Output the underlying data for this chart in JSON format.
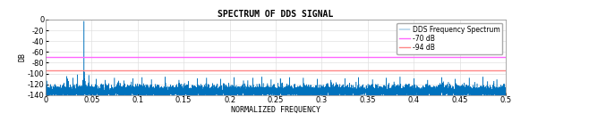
{
  "title": "SPECTRUM OF DDS SIGNAL",
  "xlabel": "NORMALIZED FREQUENCY",
  "ylabel": "DB",
  "xlim": [
    0,
    0.5
  ],
  "ylim": [
    -140,
    0
  ],
  "yticks": [
    0,
    -20,
    -40,
    -60,
    -80,
    -100,
    -120,
    -140
  ],
  "xticks": [
    0,
    0.05,
    0.1,
    0.15,
    0.2,
    0.25,
    0.3,
    0.35,
    0.4,
    0.45,
    0.5
  ],
  "hline_70_val": -70,
  "hline_70_color": "#ff66ff",
  "hline_94_val": -94,
  "hline_94_color": "#ff8888",
  "spectrum_color": "#0072BD",
  "noise_floor": -133,
  "noise_std": 6,
  "signal_freq": 0.0419,
  "signal_amplitude": -3,
  "legend_labels": [
    "DDS Frequency Spectrum",
    "-70 dB",
    "-94 dB"
  ],
  "background_color": "#ffffff",
  "plot_bg_color": "#ffffff",
  "grid_color": "#e0e0e0",
  "title_fontsize": 7,
  "axis_label_fontsize": 6,
  "tick_fontsize": 6,
  "legend_fontsize": 5.5
}
